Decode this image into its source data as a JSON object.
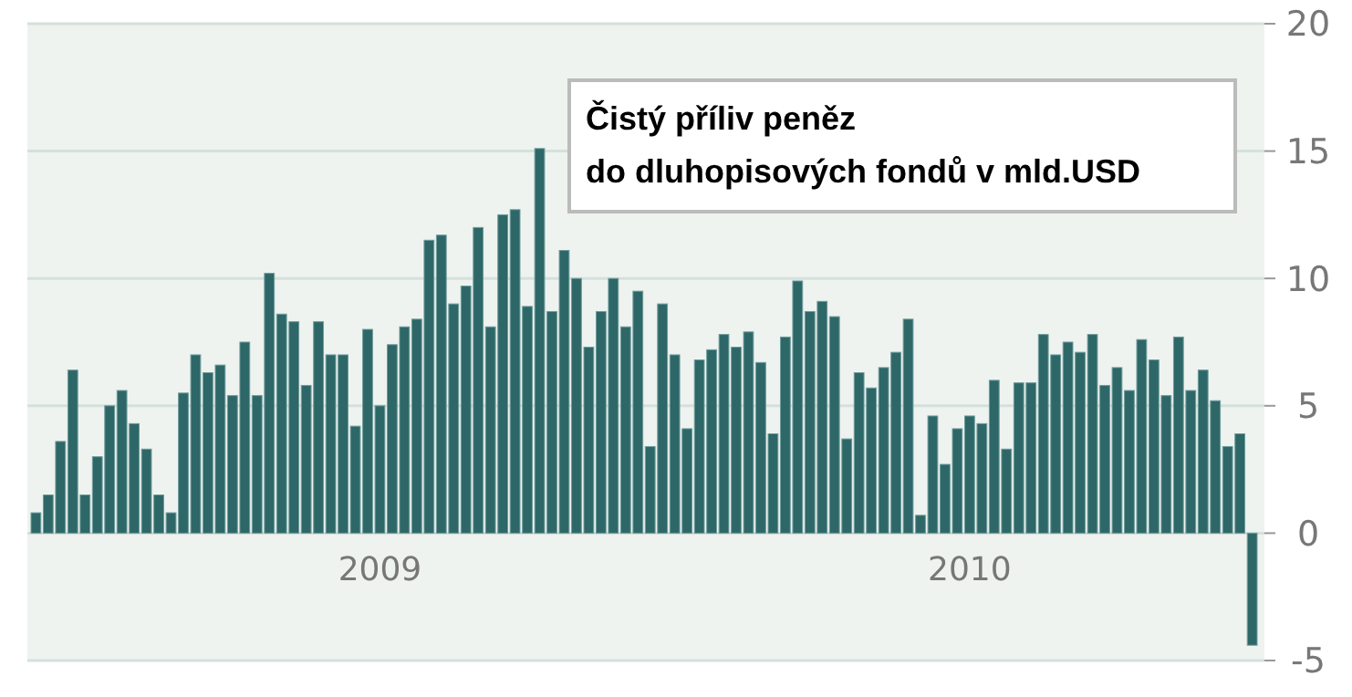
{
  "chart_data": {
    "type": "bar",
    "title": "Čistý příliv peněz\ndo dluhopisových fondů v mld.USD",
    "categories": [
      null,
      null,
      null,
      null,
      null,
      null,
      null,
      null,
      null,
      null,
      null,
      null,
      null,
      null,
      null,
      null,
      null,
      null,
      null,
      null,
      null,
      null,
      null,
      null,
      null,
      null,
      null,
      null,
      "2009",
      null,
      null,
      null,
      null,
      null,
      null,
      null,
      null,
      null,
      null,
      null,
      null,
      null,
      null,
      null,
      null,
      null,
      null,
      null,
      null,
      null,
      null,
      null,
      null,
      null,
      null,
      null,
      null,
      null,
      null,
      null,
      null,
      null,
      null,
      null,
      null,
      null,
      null,
      null,
      null,
      null,
      null,
      null,
      null,
      null,
      null,
      null,
      "2010",
      null,
      null,
      null,
      null,
      null,
      null,
      null,
      null,
      null,
      null,
      null,
      null,
      null,
      null,
      null,
      null,
      null,
      null,
      null,
      null,
      null,
      null,
      null
    ],
    "values": [
      0.8,
      1.5,
      3.6,
      6.4,
      1.5,
      3.0,
      5.0,
      5.6,
      4.3,
      3.3,
      1.5,
      0.8,
      5.5,
      7.0,
      6.3,
      6.6,
      5.4,
      7.5,
      5.4,
      10.2,
      8.6,
      8.3,
      5.8,
      8.3,
      7.0,
      7.0,
      4.2,
      8.0,
      5.0,
      7.4,
      8.1,
      8.4,
      11.5,
      11.7,
      9.0,
      9.7,
      12.0,
      8.1,
      12.5,
      12.7,
      8.9,
      15.1,
      8.7,
      11.1,
      10.0,
      7.3,
      8.7,
      10.0,
      8.1,
      9.5,
      3.4,
      9.0,
      7.0,
      4.1,
      6.8,
      7.2,
      7.8,
      7.3,
      7.9,
      6.7,
      3.9,
      7.7,
      9.9,
      8.7,
      9.1,
      8.5,
      3.7,
      6.3,
      5.7,
      6.5,
      7.1,
      8.4,
      0.7,
      4.6,
      2.7,
      4.1,
      4.6,
      4.3,
      6.0,
      3.3,
      5.9,
      5.9,
      7.8,
      7.0,
      7.5,
      7.1,
      7.8,
      5.8,
      6.5,
      5.6,
      7.6,
      6.8,
      5.4,
      7.7,
      5.6,
      6.4,
      5.2,
      3.4,
      3.9,
      -4.4
    ],
    "color": "#2e6767",
    "ylim": [
      -5,
      20
    ],
    "yticks": [
      -5,
      0,
      5,
      10,
      15,
      20
    ],
    "grid": "y"
  }
}
